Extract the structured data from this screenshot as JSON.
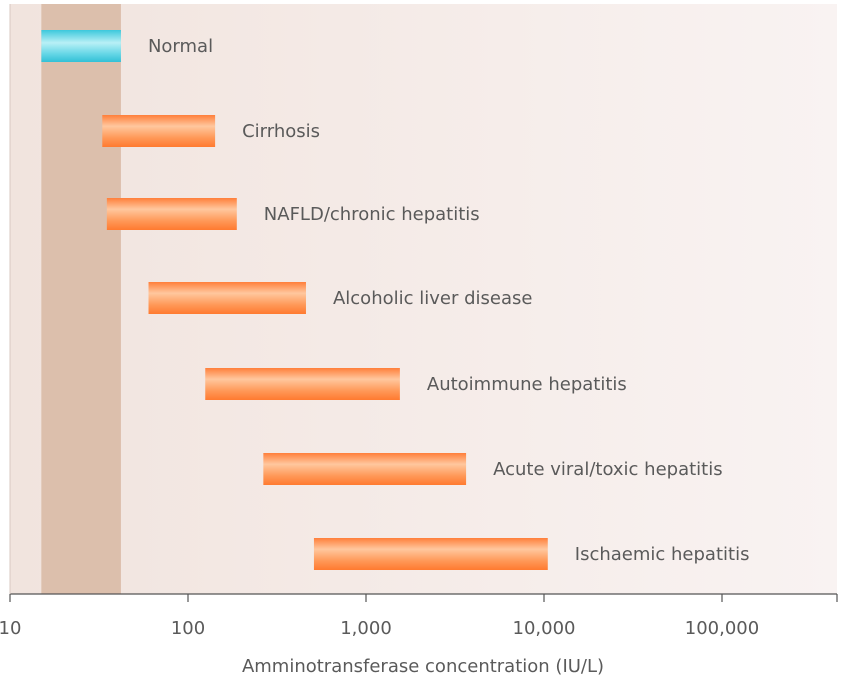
{
  "chart_data": {
    "type": "bar",
    "orientation": "horizontal-range",
    "x_scale": "log",
    "xlim": [
      10,
      50000
    ],
    "xlabel": "Amminotransferase concentration (IU/L)",
    "ylabel": "",
    "title": "",
    "x_ticks": [
      10,
      100,
      1000,
      10000,
      100000
    ],
    "x_tick_labels": [
      "10",
      "100",
      "1,000",
      "10,000",
      "100,000"
    ],
    "normal_band": [
      15,
      42
    ],
    "series": [
      {
        "label": "Normal",
        "low": 15,
        "high": 42,
        "color": "#5fd0e0"
      },
      {
        "label": "Cirrhosis",
        "low": 33,
        "high": 142,
        "color": "#ff9a5a"
      },
      {
        "label": "NAFLD/chronic hepatitis",
        "low": 35,
        "high": 188,
        "color": "#ff9a5a"
      },
      {
        "label": "Alcoholic liver disease",
        "low": 60,
        "high": 460,
        "color": "#ff9a5a"
      },
      {
        "label": "Autoimmune hepatitis",
        "low": 125,
        "high": 1550,
        "color": "#ff9a5a"
      },
      {
        "label": "Acute viral/toxic hepatitis",
        "low": 265,
        "high": 3650,
        "color": "#ff9a5a"
      },
      {
        "label": "Ischaemic hepatitis",
        "low": 510,
        "high": 10500,
        "color": "#ff9a5a"
      }
    ],
    "grid": false,
    "legend": "none"
  },
  "colors": {
    "band": "#dcbfac",
    "plot_bg_left": "#f1e4de",
    "plot_bg_right": "#f8f1f0",
    "axis": "#555555",
    "text": "#5a5a5a"
  }
}
